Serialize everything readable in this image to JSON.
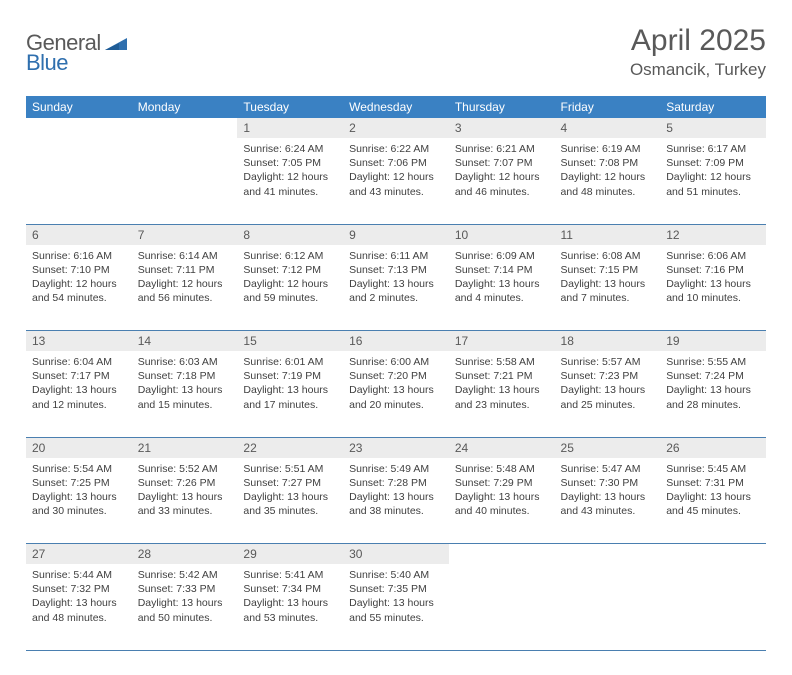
{
  "brand": {
    "word1": "General",
    "word2": "Blue"
  },
  "header": {
    "title": "April 2025",
    "subtitle": "Osmancik, Turkey"
  },
  "colors": {
    "header_bg": "#3a81c3",
    "header_text": "#ffffff",
    "daynum_bg": "#ececec",
    "text_gray": "#595959",
    "cell_text": "#404040",
    "rule": "#4a7fb0",
    "logo_blue": "#2f6fae"
  },
  "day_headers": [
    "Sunday",
    "Monday",
    "Tuesday",
    "Wednesday",
    "Thursday",
    "Friday",
    "Saturday"
  ],
  "weeks": [
    [
      {
        "n": "",
        "lines": []
      },
      {
        "n": "",
        "lines": []
      },
      {
        "n": "1",
        "lines": [
          "Sunrise: 6:24 AM",
          "Sunset: 7:05 PM",
          "Daylight: 12 hours",
          "and 41 minutes."
        ]
      },
      {
        "n": "2",
        "lines": [
          "Sunrise: 6:22 AM",
          "Sunset: 7:06 PM",
          "Daylight: 12 hours",
          "and 43 minutes."
        ]
      },
      {
        "n": "3",
        "lines": [
          "Sunrise: 6:21 AM",
          "Sunset: 7:07 PM",
          "Daylight: 12 hours",
          "and 46 minutes."
        ]
      },
      {
        "n": "4",
        "lines": [
          "Sunrise: 6:19 AM",
          "Sunset: 7:08 PM",
          "Daylight: 12 hours",
          "and 48 minutes."
        ]
      },
      {
        "n": "5",
        "lines": [
          "Sunrise: 6:17 AM",
          "Sunset: 7:09 PM",
          "Daylight: 12 hours",
          "and 51 minutes."
        ]
      }
    ],
    [
      {
        "n": "6",
        "lines": [
          "Sunrise: 6:16 AM",
          "Sunset: 7:10 PM",
          "Daylight: 12 hours",
          "and 54 minutes."
        ]
      },
      {
        "n": "7",
        "lines": [
          "Sunrise: 6:14 AM",
          "Sunset: 7:11 PM",
          "Daylight: 12 hours",
          "and 56 minutes."
        ]
      },
      {
        "n": "8",
        "lines": [
          "Sunrise: 6:12 AM",
          "Sunset: 7:12 PM",
          "Daylight: 12 hours",
          "and 59 minutes."
        ]
      },
      {
        "n": "9",
        "lines": [
          "Sunrise: 6:11 AM",
          "Sunset: 7:13 PM",
          "Daylight: 13 hours",
          "and 2 minutes."
        ]
      },
      {
        "n": "10",
        "lines": [
          "Sunrise: 6:09 AM",
          "Sunset: 7:14 PM",
          "Daylight: 13 hours",
          "and 4 minutes."
        ]
      },
      {
        "n": "11",
        "lines": [
          "Sunrise: 6:08 AM",
          "Sunset: 7:15 PM",
          "Daylight: 13 hours",
          "and 7 minutes."
        ]
      },
      {
        "n": "12",
        "lines": [
          "Sunrise: 6:06 AM",
          "Sunset: 7:16 PM",
          "Daylight: 13 hours",
          "and 10 minutes."
        ]
      }
    ],
    [
      {
        "n": "13",
        "lines": [
          "Sunrise: 6:04 AM",
          "Sunset: 7:17 PM",
          "Daylight: 13 hours",
          "and 12 minutes."
        ]
      },
      {
        "n": "14",
        "lines": [
          "Sunrise: 6:03 AM",
          "Sunset: 7:18 PM",
          "Daylight: 13 hours",
          "and 15 minutes."
        ]
      },
      {
        "n": "15",
        "lines": [
          "Sunrise: 6:01 AM",
          "Sunset: 7:19 PM",
          "Daylight: 13 hours",
          "and 17 minutes."
        ]
      },
      {
        "n": "16",
        "lines": [
          "Sunrise: 6:00 AM",
          "Sunset: 7:20 PM",
          "Daylight: 13 hours",
          "and 20 minutes."
        ]
      },
      {
        "n": "17",
        "lines": [
          "Sunrise: 5:58 AM",
          "Sunset: 7:21 PM",
          "Daylight: 13 hours",
          "and 23 minutes."
        ]
      },
      {
        "n": "18",
        "lines": [
          "Sunrise: 5:57 AM",
          "Sunset: 7:23 PM",
          "Daylight: 13 hours",
          "and 25 minutes."
        ]
      },
      {
        "n": "19",
        "lines": [
          "Sunrise: 5:55 AM",
          "Sunset: 7:24 PM",
          "Daylight: 13 hours",
          "and 28 minutes."
        ]
      }
    ],
    [
      {
        "n": "20",
        "lines": [
          "Sunrise: 5:54 AM",
          "Sunset: 7:25 PM",
          "Daylight: 13 hours",
          "and 30 minutes."
        ]
      },
      {
        "n": "21",
        "lines": [
          "Sunrise: 5:52 AM",
          "Sunset: 7:26 PM",
          "Daylight: 13 hours",
          "and 33 minutes."
        ]
      },
      {
        "n": "22",
        "lines": [
          "Sunrise: 5:51 AM",
          "Sunset: 7:27 PM",
          "Daylight: 13 hours",
          "and 35 minutes."
        ]
      },
      {
        "n": "23",
        "lines": [
          "Sunrise: 5:49 AM",
          "Sunset: 7:28 PM",
          "Daylight: 13 hours",
          "and 38 minutes."
        ]
      },
      {
        "n": "24",
        "lines": [
          "Sunrise: 5:48 AM",
          "Sunset: 7:29 PM",
          "Daylight: 13 hours",
          "and 40 minutes."
        ]
      },
      {
        "n": "25",
        "lines": [
          "Sunrise: 5:47 AM",
          "Sunset: 7:30 PM",
          "Daylight: 13 hours",
          "and 43 minutes."
        ]
      },
      {
        "n": "26",
        "lines": [
          "Sunrise: 5:45 AM",
          "Sunset: 7:31 PM",
          "Daylight: 13 hours",
          "and 45 minutes."
        ]
      }
    ],
    [
      {
        "n": "27",
        "lines": [
          "Sunrise: 5:44 AM",
          "Sunset: 7:32 PM",
          "Daylight: 13 hours",
          "and 48 minutes."
        ]
      },
      {
        "n": "28",
        "lines": [
          "Sunrise: 5:42 AM",
          "Sunset: 7:33 PM",
          "Daylight: 13 hours",
          "and 50 minutes."
        ]
      },
      {
        "n": "29",
        "lines": [
          "Sunrise: 5:41 AM",
          "Sunset: 7:34 PM",
          "Daylight: 13 hours",
          "and 53 minutes."
        ]
      },
      {
        "n": "30",
        "lines": [
          "Sunrise: 5:40 AM",
          "Sunset: 7:35 PM",
          "Daylight: 13 hours",
          "and 55 minutes."
        ]
      },
      {
        "n": "",
        "lines": []
      },
      {
        "n": "",
        "lines": []
      },
      {
        "n": "",
        "lines": []
      }
    ]
  ]
}
